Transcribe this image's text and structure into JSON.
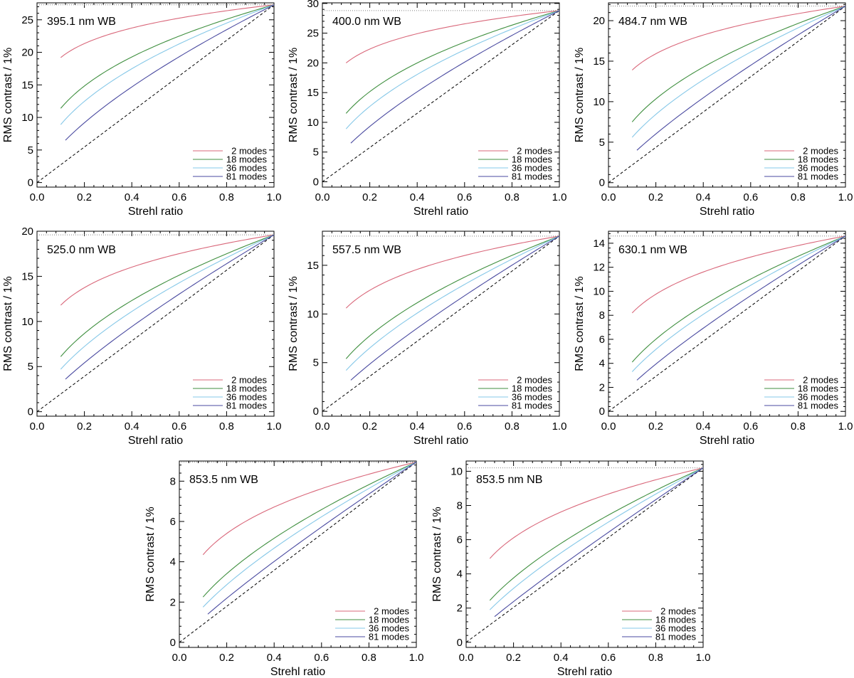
{
  "figure": {
    "colors": {
      "2 modes": "#d9677a",
      "18 modes": "#3f8f3f",
      "36 modes": "#86c8e8",
      "81 modes": "#4a4aa0",
      "diagonal": "#000000",
      "reference": "#808080"
    }
  },
  "chart_data": [
    {
      "type": "line",
      "title": "395.1 nm WB",
      "xlabel": "Strehl ratio",
      "ylabel": "RMS contrast / 1%",
      "xlim": [
        0.0,
        1.0
      ],
      "ylim": [
        -0.7,
        27.6
      ],
      "xticks": [
        "0.0",
        "0.2",
        "0.4",
        "0.6",
        "0.8",
        "1.0"
      ],
      "yticks": [
        0,
        5,
        10,
        15,
        20,
        25
      ],
      "ref_line": 27.3,
      "legend": [
        "2 modes",
        "18 modes",
        "36 modes",
        "81 modes"
      ],
      "series": [
        {
          "name": "2 modes",
          "x_start": 0.1,
          "y_start": 19.2,
          "y_end": 27.3
        },
        {
          "name": "18 modes",
          "x_start": 0.1,
          "y_start": 11.4,
          "y_end": 27.3
        },
        {
          "name": "36 modes",
          "x_start": 0.1,
          "y_start": 8.9,
          "y_end": 27.3
        },
        {
          "name": "81 modes",
          "x_start": 0.12,
          "y_start": 6.5,
          "y_end": 27.3
        }
      ]
    },
    {
      "type": "line",
      "title": "400.0 nm WB",
      "xlabel": "Strehl ratio",
      "ylabel": "RMS contrast / 1%",
      "xlim": [
        0.0,
        1.0
      ],
      "ylim": [
        -0.9,
        30.1
      ],
      "xticks": [
        "0.0",
        "0.2",
        "0.4",
        "0.6",
        "0.8",
        "1.0"
      ],
      "yticks": [
        0,
        5,
        10,
        15,
        20,
        25,
        30
      ],
      "ref_line": 28.8,
      "legend": [
        "2 modes",
        "18 modes",
        "36 modes",
        "81 modes"
      ],
      "series": [
        {
          "name": "2 modes",
          "x_start": 0.1,
          "y_start": 20.0,
          "y_end": 28.8
        },
        {
          "name": "18 modes",
          "x_start": 0.1,
          "y_start": 11.5,
          "y_end": 28.8
        },
        {
          "name": "36 modes",
          "x_start": 0.1,
          "y_start": 8.9,
          "y_end": 28.8
        },
        {
          "name": "81 modes",
          "x_start": 0.12,
          "y_start": 6.5,
          "y_end": 28.8
        }
      ]
    },
    {
      "type": "line",
      "title": "484.7 nm WB",
      "xlabel": "Strehl ratio",
      "ylabel": "RMS contrast / 1%",
      "xlim": [
        0.0,
        1.0
      ],
      "ylim": [
        -0.55,
        22.2
      ],
      "xticks": [
        "0.0",
        "0.2",
        "0.4",
        "0.6",
        "0.8",
        "1.0"
      ],
      "yticks": [
        0,
        5,
        10,
        15,
        20
      ],
      "ref_line": 21.8,
      "legend": [
        "2 modes",
        "18 modes",
        "36 modes",
        "81 modes"
      ],
      "series": [
        {
          "name": "2 modes",
          "x_start": 0.1,
          "y_start": 13.9,
          "y_end": 21.8
        },
        {
          "name": "18 modes",
          "x_start": 0.1,
          "y_start": 7.5,
          "y_end": 21.8
        },
        {
          "name": "36 modes",
          "x_start": 0.1,
          "y_start": 5.6,
          "y_end": 21.8
        },
        {
          "name": "81 modes",
          "x_start": 0.12,
          "y_start": 4.0,
          "y_end": 21.8
        }
      ]
    },
    {
      "type": "line",
      "title": "525.0 nm WB",
      "xlabel": "Strehl ratio",
      "ylabel": "RMS contrast / 1%",
      "xlim": [
        0.0,
        1.0
      ],
      "ylim": [
        -0.5,
        20.0
      ],
      "xticks": [
        "0.0",
        "0.2",
        "0.4",
        "0.6",
        "0.8",
        "1.0"
      ],
      "yticks": [
        0,
        5,
        10,
        15,
        20
      ],
      "ref_line": 19.6,
      "legend": [
        "2 modes",
        "18 modes",
        "36 modes",
        "81 modes"
      ],
      "series": [
        {
          "name": "2 modes",
          "x_start": 0.1,
          "y_start": 11.8,
          "y_end": 19.6
        },
        {
          "name": "18 modes",
          "x_start": 0.1,
          "y_start": 6.1,
          "y_end": 19.6
        },
        {
          "name": "36 modes",
          "x_start": 0.1,
          "y_start": 4.7,
          "y_end": 19.6
        },
        {
          "name": "81 modes",
          "x_start": 0.12,
          "y_start": 3.6,
          "y_end": 19.6
        }
      ]
    },
    {
      "type": "line",
      "title": "557.5 nm WB",
      "xlabel": "Strehl ratio",
      "ylabel": "RMS contrast / 1%",
      "xlim": [
        0.0,
        1.0
      ],
      "ylim": [
        -0.5,
        18.5
      ],
      "xticks": [
        "0.0",
        "0.2",
        "0.4",
        "0.6",
        "0.8",
        "1.0"
      ],
      "yticks": [
        0,
        5,
        10,
        15
      ],
      "ref_line": 18.0,
      "legend": [
        "2 modes",
        "18 modes",
        "36 modes",
        "81 modes"
      ],
      "series": [
        {
          "name": "2 modes",
          "x_start": 0.1,
          "y_start": 10.6,
          "y_end": 18.0
        },
        {
          "name": "18 modes",
          "x_start": 0.1,
          "y_start": 5.4,
          "y_end": 18.0
        },
        {
          "name": "36 modes",
          "x_start": 0.1,
          "y_start": 4.2,
          "y_end": 18.0
        },
        {
          "name": "81 modes",
          "x_start": 0.12,
          "y_start": 3.2,
          "y_end": 18.0
        }
      ]
    },
    {
      "type": "line",
      "title": "630.1 nm WB",
      "xlabel": "Strehl ratio",
      "ylabel": "RMS contrast / 1%",
      "xlim": [
        0.0,
        1.0
      ],
      "ylim": [
        -0.4,
        15.0
      ],
      "xticks": [
        "0.0",
        "0.2",
        "0.4",
        "0.6",
        "0.8",
        "1.0"
      ],
      "yticks": [
        0,
        2,
        4,
        6,
        8,
        10,
        12,
        14
      ],
      "ref_line": 14.6,
      "legend": [
        "2 modes",
        "18 modes",
        "36 modes",
        "81 modes"
      ],
      "series": [
        {
          "name": "2 modes",
          "x_start": 0.1,
          "y_start": 8.2,
          "y_end": 14.6
        },
        {
          "name": "18 modes",
          "x_start": 0.1,
          "y_start": 4.1,
          "y_end": 14.6
        },
        {
          "name": "36 modes",
          "x_start": 0.1,
          "y_start": 3.3,
          "y_end": 14.6
        },
        {
          "name": "81 modes",
          "x_start": 0.12,
          "y_start": 2.6,
          "y_end": 14.6
        }
      ]
    },
    {
      "type": "line",
      "title": "853.5 nm WB",
      "xlabel": "Strehl ratio",
      "ylabel": "RMS contrast / 1%",
      "xlim": [
        0.0,
        1.0
      ],
      "ylim": [
        -0.25,
        9.0
      ],
      "xticks": [
        "0.0",
        "0.2",
        "0.4",
        "0.6",
        "0.8",
        "1.0"
      ],
      "yticks": [
        0,
        2,
        4,
        6,
        8
      ],
      "ref_line": 8.95,
      "legend": [
        "2 modes",
        "18 modes",
        "36 modes",
        "81 modes"
      ],
      "series": [
        {
          "name": "2 modes",
          "x_start": 0.1,
          "y_start": 4.35,
          "y_end": 8.95
        },
        {
          "name": "18 modes",
          "x_start": 0.1,
          "y_start": 2.25,
          "y_end": 8.95
        },
        {
          "name": "36 modes",
          "x_start": 0.1,
          "y_start": 1.75,
          "y_end": 8.95
        },
        {
          "name": "81 modes",
          "x_start": 0.12,
          "y_start": 1.4,
          "y_end": 8.95
        }
      ]
    },
    {
      "type": "line",
      "title": "853.5 nm NB",
      "xlabel": "Strehl ratio",
      "ylabel": "RMS contrast / 1%",
      "xlim": [
        0.0,
        1.0
      ],
      "ylim": [
        -0.3,
        10.6
      ],
      "xticks": [
        "0.0",
        "0.2",
        "0.4",
        "0.6",
        "0.8",
        "1.0"
      ],
      "yticks": [
        0,
        2,
        4,
        6,
        8,
        10
      ],
      "ref_line": 10.2,
      "legend": [
        "2 modes",
        "18 modes",
        "36 modes",
        "81 modes"
      ],
      "series": [
        {
          "name": "2 modes",
          "x_start": 0.1,
          "y_start": 4.9,
          "y_end": 10.2
        },
        {
          "name": "18 modes",
          "x_start": 0.1,
          "y_start": 2.45,
          "y_end": 10.2
        },
        {
          "name": "36 modes",
          "x_start": 0.1,
          "y_start": 1.9,
          "y_end": 10.2
        },
        {
          "name": "81 modes",
          "x_start": 0.12,
          "y_start": 1.5,
          "y_end": 10.2
        }
      ]
    }
  ]
}
